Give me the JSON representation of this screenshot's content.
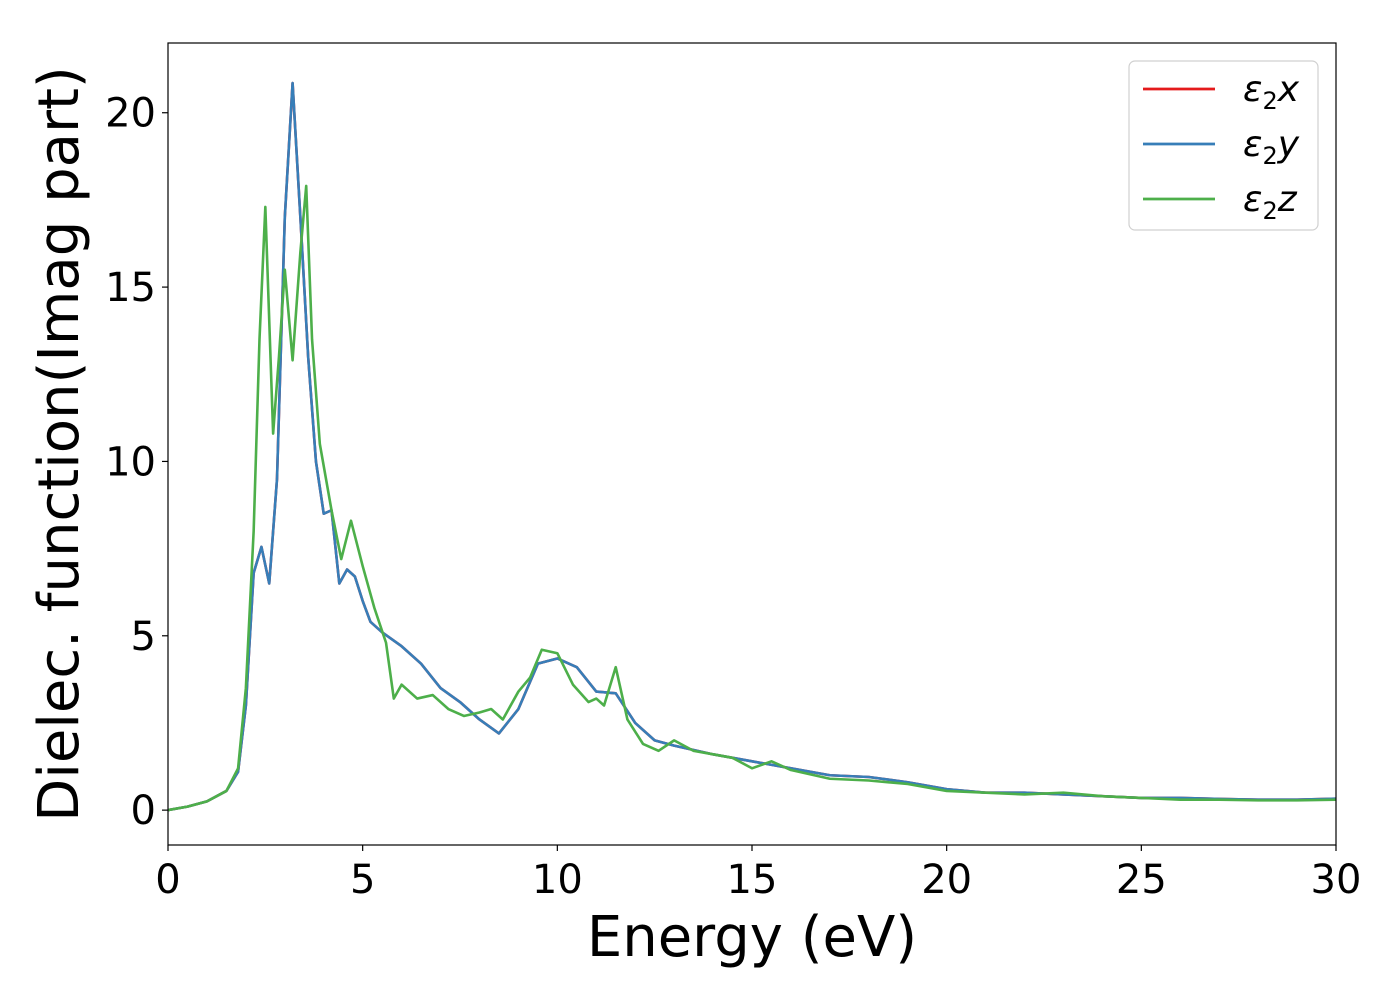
{
  "chart_data": {
    "type": "line",
    "title": "",
    "xlabel": "Energy (eV)",
    "ylabel": "Dielec. function(Imag part)",
    "xlim": [
      0,
      30
    ],
    "ylim": [
      -1,
      22
    ],
    "x_ticks": [
      0,
      5,
      10,
      15,
      20,
      25,
      30
    ],
    "y_ticks": [
      0,
      5,
      10,
      15,
      20
    ],
    "x_tick_labels": [
      "0",
      "5",
      "10",
      "15",
      "20",
      "25",
      "30"
    ],
    "y_tick_labels": [
      "0",
      "5",
      "10",
      "15",
      "20"
    ],
    "grid": false,
    "legend_position": "top-right",
    "series": [
      {
        "name": "ε2x",
        "legend_main": "ε",
        "legend_sub": "2",
        "legend_var": "x",
        "color": "#e41a1c",
        "x": [
          0,
          0.5,
          1,
          1.5,
          1.8,
          2,
          2.2,
          2.4,
          2.6,
          2.8,
          3.0,
          3.2,
          3.4,
          3.6,
          3.8,
          4.0,
          4.2,
          4.4,
          4.6,
          4.8,
          5.0,
          5.2,
          5.5,
          6.0,
          6.5,
          7.0,
          7.5,
          8.0,
          8.5,
          9.0,
          9.5,
          10.0,
          10.5,
          11.0,
          11.5,
          12.0,
          12.5,
          13.0,
          14.0,
          15.0,
          16.0,
          17.0,
          18.0,
          19.0,
          20.0,
          21.0,
          22.0,
          23.0,
          24.0,
          25.0,
          26.0,
          27.0,
          28.0,
          29.0,
          30.0
        ],
        "values": [
          0,
          0.1,
          0.25,
          0.55,
          1.1,
          3.0,
          6.8,
          7.55,
          6.5,
          9.5,
          17.0,
          20.85,
          17.0,
          13.0,
          10.0,
          8.5,
          8.6,
          6.5,
          6.9,
          6.7,
          6.0,
          5.4,
          5.1,
          4.7,
          4.2,
          3.5,
          3.1,
          2.6,
          2.2,
          2.9,
          4.2,
          4.35,
          4.1,
          3.4,
          3.35,
          2.5,
          2.0,
          1.85,
          1.6,
          1.4,
          1.2,
          1.0,
          0.95,
          0.8,
          0.6,
          0.5,
          0.5,
          0.45,
          0.4,
          0.35,
          0.35,
          0.32,
          0.3,
          0.3,
          0.33
        ]
      },
      {
        "name": "ε2y",
        "legend_main": "ε",
        "legend_sub": "2",
        "legend_var": "y",
        "color": "#377eb8",
        "x": [
          0,
          0.5,
          1,
          1.5,
          1.8,
          2,
          2.2,
          2.4,
          2.6,
          2.8,
          3.0,
          3.2,
          3.4,
          3.6,
          3.8,
          4.0,
          4.2,
          4.4,
          4.6,
          4.8,
          5.0,
          5.2,
          5.5,
          6.0,
          6.5,
          7.0,
          7.5,
          8.0,
          8.5,
          9.0,
          9.5,
          10.0,
          10.5,
          11.0,
          11.5,
          12.0,
          12.5,
          13.0,
          14.0,
          15.0,
          16.0,
          17.0,
          18.0,
          19.0,
          20.0,
          21.0,
          22.0,
          23.0,
          24.0,
          25.0,
          26.0,
          27.0,
          28.0,
          29.0,
          30.0
        ],
        "values": [
          0,
          0.1,
          0.25,
          0.55,
          1.1,
          3.0,
          6.8,
          7.55,
          6.5,
          9.5,
          17.0,
          20.85,
          17.0,
          13.0,
          10.0,
          8.5,
          8.6,
          6.5,
          6.9,
          6.7,
          6.0,
          5.4,
          5.1,
          4.7,
          4.2,
          3.5,
          3.1,
          2.6,
          2.2,
          2.9,
          4.2,
          4.35,
          4.1,
          3.4,
          3.35,
          2.5,
          2.0,
          1.85,
          1.6,
          1.4,
          1.2,
          1.0,
          0.95,
          0.8,
          0.6,
          0.5,
          0.5,
          0.45,
          0.4,
          0.35,
          0.35,
          0.32,
          0.3,
          0.3,
          0.33
        ]
      },
      {
        "name": "ε2z",
        "legend_main": "ε",
        "legend_sub": "2",
        "legend_var": "z",
        "color": "#4daf4a",
        "x": [
          0,
          0.5,
          1,
          1.5,
          1.8,
          2,
          2.2,
          2.35,
          2.5,
          2.7,
          2.85,
          3.0,
          3.2,
          3.4,
          3.55,
          3.7,
          3.9,
          4.2,
          4.45,
          4.7,
          5.0,
          5.3,
          5.6,
          5.8,
          6.0,
          6.4,
          6.8,
          7.2,
          7.6,
          8.0,
          8.3,
          8.6,
          9.0,
          9.3,
          9.6,
          10.0,
          10.4,
          10.8,
          11.0,
          11.2,
          11.5,
          11.8,
          12.2,
          12.6,
          13.0,
          13.5,
          14.0,
          14.5,
          15.0,
          15.5,
          16.0,
          17.0,
          18.0,
          19.0,
          20.0,
          21.0,
          22.0,
          23.0,
          24.0,
          25.0,
          26.0,
          27.0,
          28.0,
          29.0,
          30.0
        ],
        "values": [
          0,
          0.1,
          0.25,
          0.55,
          1.2,
          3.5,
          8.0,
          13.5,
          17.3,
          10.8,
          13.0,
          15.5,
          12.9,
          16.0,
          17.9,
          13.5,
          10.5,
          8.6,
          7.2,
          8.3,
          7.0,
          5.8,
          4.8,
          3.2,
          3.6,
          3.2,
          3.3,
          2.9,
          2.7,
          2.8,
          2.9,
          2.6,
          3.4,
          3.8,
          4.6,
          4.5,
          3.6,
          3.1,
          3.2,
          3.0,
          4.1,
          2.6,
          1.9,
          1.7,
          2.0,
          1.7,
          1.6,
          1.5,
          1.2,
          1.4,
          1.15,
          0.9,
          0.85,
          0.75,
          0.55,
          0.5,
          0.45,
          0.5,
          0.4,
          0.35,
          0.3,
          0.3,
          0.28,
          0.28,
          0.3
        ]
      }
    ]
  }
}
